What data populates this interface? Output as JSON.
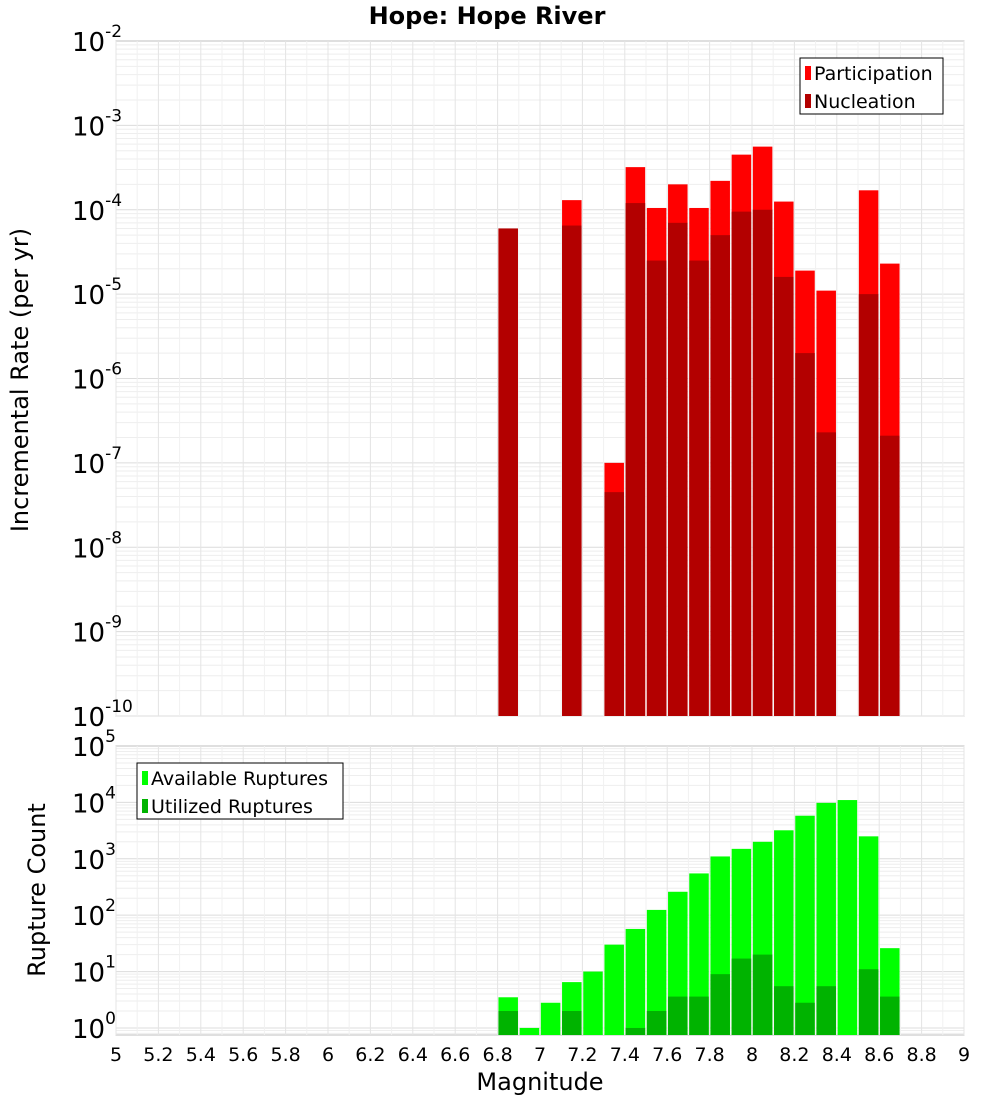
{
  "chart_data": [
    {
      "type": "bar",
      "title": "Hope: Hope River",
      "ylabel": "Incremental Rate (per yr)",
      "xlabel": "",
      "xlim": [
        5,
        9
      ],
      "ylim": [
        1e-10,
        0.01
      ],
      "yscale": "log",
      "grid": true,
      "legend_position": "top-right",
      "x": [
        6.85,
        7.15,
        7.35,
        7.45,
        7.55,
        7.65,
        7.75,
        7.85,
        7.95,
        8.05,
        8.15,
        8.25,
        8.35,
        8.55,
        8.65
      ],
      "series": [
        {
          "name": "Participation",
          "color": "#ff0000",
          "values": [
            6e-05,
            0.00013,
            1e-07,
            0.00032,
            0.000105,
            0.0002,
            0.000105,
            0.00022,
            0.00045,
            0.00056,
            0.000125,
            1.9e-05,
            1.1e-05,
            0.00017,
            2.3e-05
          ]
        },
        {
          "name": "Nucleation",
          "color": "#b30000",
          "values": [
            6e-05,
            6.5e-05,
            4.5e-08,
            0.00012,
            2.5e-05,
            7e-05,
            2.5e-05,
            5e-05,
            9.5e-05,
            0.0001,
            1.6e-05,
            2e-06,
            2.3e-07,
            1e-05,
            2.1e-07
          ]
        }
      ]
    },
    {
      "type": "bar",
      "title": "",
      "ylabel": "Rupture Count",
      "xlabel": "Magnitude",
      "xlim": [
        5,
        9
      ],
      "ylim": [
        0.75,
        100000.0
      ],
      "yscale": "log",
      "grid": true,
      "legend_position": "top-left",
      "x": [
        6.85,
        6.95,
        7.05,
        7.15,
        7.25,
        7.35,
        7.45,
        7.55,
        7.65,
        7.75,
        7.85,
        7.95,
        8.05,
        8.15,
        8.25,
        8.35,
        8.45,
        8.55,
        8.65
      ],
      "series": [
        {
          "name": "Available Ruptures",
          "color": "#00ff00",
          "values": [
            3.5,
            1,
            2.8,
            6.5,
            10,
            30,
            57,
            124,
            260,
            550,
            1100,
            1500,
            2000,
            3200,
            5800,
            9800,
            11000,
            2500,
            26
          ]
        },
        {
          "name": "Utilized Ruptures",
          "color": "#00b300",
          "values": [
            2,
            0,
            0,
            2,
            0,
            0,
            1,
            2,
            3.6,
            3.6,
            9,
            17,
            20,
            5.5,
            2.8,
            5.5,
            0,
            11,
            3.6
          ]
        }
      ],
      "xticks": [
        "5",
        "5.2",
        "5.4",
        "5.6",
        "5.8",
        "6",
        "6.2",
        "6.4",
        "6.6",
        "6.8",
        "7",
        "7.2",
        "7.4",
        "7.6",
        "7.8",
        "8",
        "8.2",
        "8.4",
        "8.6",
        "8.8",
        "9"
      ]
    }
  ]
}
